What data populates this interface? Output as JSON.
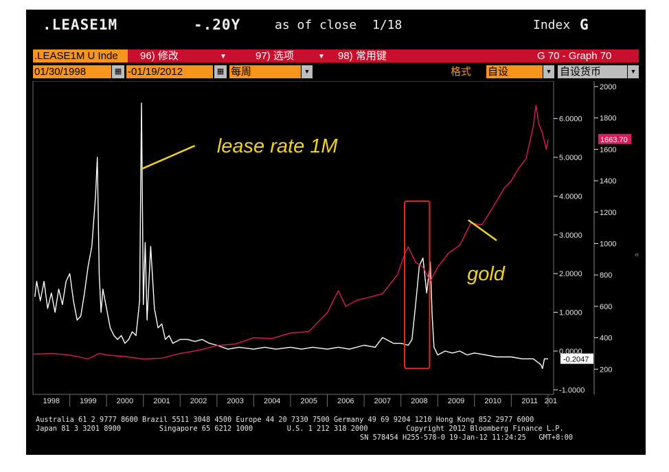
{
  "header": {
    "ticker": ".LEASE1M",
    "spread": "-.20Y",
    "asof": "as of close",
    "date": "1/18",
    "index_label": "Index",
    "g_label": "G"
  },
  "menu": {
    "security_field": ".LEASE1M U Inde",
    "item_96": "96) 修改",
    "item_97": "97) 选项",
    "item_98": "98) 常用键",
    "graph_label": "G 70 - Graph 70"
  },
  "toolbar": {
    "start_date": "01/30/1998",
    "end_date": "01/19/2012",
    "period": "每周",
    "format_label": "格式",
    "format_value": "自设",
    "currency": "自设货币"
  },
  "chart_data": {
    "type": "line",
    "title": "",
    "x_ticks": [
      "1998",
      "1999",
      "2000",
      "2001",
      "2002",
      "2003",
      "2004",
      "2005",
      "2006",
      "2007",
      "2008",
      "2009",
      "2010",
      "2011",
      "201"
    ],
    "ylim_left": [
      -1.0,
      6.8
    ],
    "left_ticks": [
      "-1.0000",
      "0.0000",
      "1.0000",
      "2.0000",
      "3.0000",
      "4.0000",
      "5.0000",
      "6.0000"
    ],
    "left_tick_values": [
      -1,
      0,
      1,
      2,
      3,
      4,
      5,
      6
    ],
    "ylim_right": [
      150,
      2000
    ],
    "right_ticks": [
      "200",
      "400",
      "600",
      "800",
      "1000",
      "1200",
      "1400",
      "1600",
      "1800",
      "2000"
    ],
    "right_tick_values": [
      200,
      400,
      600,
      800,
      1000,
      1200,
      1400,
      1600,
      1800,
      2000
    ],
    "series": [
      {
        "key": "lease",
        "axis": "left",
        "color": "#ffffff",
        "x": [
          1998.05,
          1998.1,
          1998.2,
          1998.3,
          1998.4,
          1998.5,
          1998.6,
          1998.7,
          1998.8,
          1998.9,
          1999.0,
          1999.1,
          1999.2,
          1999.3,
          1999.4,
          1999.5,
          1999.6,
          1999.7,
          1999.75,
          1999.8,
          1999.85,
          1999.9,
          2000.0,
          2000.1,
          2000.2,
          2000.3,
          2000.4,
          2000.5,
          2000.6,
          2000.7,
          2000.8,
          2000.9,
          2000.95,
          2001.0,
          2001.05,
          2001.1,
          2001.2,
          2001.3,
          2001.4,
          2001.5,
          2001.6,
          2001.7,
          2001.8,
          2002.0,
          2002.2,
          2002.4,
          2002.6,
          2002.8,
          2003.0,
          2003.3,
          2003.6,
          2004.0,
          2004.3,
          2004.6,
          2005.0,
          2005.3,
          2005.6,
          2006.0,
          2006.3,
          2006.6,
          2007.0,
          2007.3,
          2007.5,
          2007.8,
          2008.0,
          2008.2,
          2008.3,
          2008.4,
          2008.5,
          2008.6,
          2008.7,
          2008.8,
          2008.85,
          2008.9,
          2009.0,
          2009.2,
          2009.4,
          2009.6,
          2009.8,
          2010.0,
          2010.3,
          2010.6,
          2011.0,
          2011.3,
          2011.6,
          2011.8,
          2011.85,
          2011.9,
          2012.0
        ],
        "y": [
          1.4,
          1.8,
          1.3,
          1.8,
          1.1,
          1.5,
          1.0,
          1.6,
          1.2,
          1.8,
          2.0,
          1.3,
          0.8,
          0.9,
          1.5,
          2.2,
          2.7,
          4.0,
          5.0,
          2.0,
          1.0,
          1.6,
          1.1,
          0.6,
          0.4,
          0.3,
          0.4,
          0.2,
          0.3,
          0.5,
          0.4,
          1.3,
          6.4,
          1.2,
          2.8,
          0.8,
          2.7,
          1.1,
          0.6,
          0.7,
          0.3,
          0.4,
          0.2,
          0.3,
          0.3,
          0.25,
          0.3,
          0.2,
          0.15,
          0.05,
          0.1,
          0.05,
          0.1,
          0.05,
          0.1,
          0.05,
          0.1,
          0.05,
          0.1,
          0.05,
          0.15,
          0.1,
          0.35,
          0.2,
          0.2,
          0.15,
          0.3,
          1.2,
          2.2,
          2.4,
          1.5,
          2.3,
          0.9,
          0.1,
          -0.1,
          0.0,
          -0.05,
          0.0,
          -0.1,
          -0.05,
          -0.1,
          -0.15,
          -0.15,
          -0.2,
          -0.2,
          -0.35,
          -0.45,
          -0.2,
          -0.2
        ]
      },
      {
        "key": "gold",
        "axis": "right",
        "color": "#e0195f",
        "x": [
          1998.0,
          1998.5,
          1999.0,
          1999.5,
          1999.8,
          2000.0,
          2000.5,
          2001.0,
          2001.5,
          2002.0,
          2002.5,
          2003.0,
          2003.5,
          2004.0,
          2004.5,
          2005.0,
          2005.5,
          2006.0,
          2006.3,
          2006.5,
          2006.8,
          2007.0,
          2007.5,
          2007.9,
          2008.1,
          2008.2,
          2008.4,
          2008.6,
          2008.8,
          2009.0,
          2009.3,
          2009.6,
          2009.9,
          2010.2,
          2010.5,
          2010.8,
          2011.0,
          2011.2,
          2011.4,
          2011.6,
          2011.67,
          2011.75,
          2011.85,
          2011.95,
          2012.0
        ],
        "y": [
          295,
          300,
          290,
          265,
          300,
          290,
          280,
          265,
          270,
          300,
          320,
          350,
          360,
          400,
          395,
          430,
          440,
          560,
          700,
          600,
          640,
          650,
          680,
          800,
          930,
          980,
          880,
          850,
          760,
          850,
          940,
          990,
          1130,
          1120,
          1230,
          1350,
          1400,
          1480,
          1540,
          1750,
          1880,
          1760,
          1700,
          1600,
          1663
        ]
      }
    ],
    "annotations": {
      "lease_label": "lease rate 1M",
      "gold_label": "gold",
      "last_lease": "-0.2047",
      "last_gold": "1663.70",
      "highlight_from": 2008.1,
      "highlight_to": 2008.78,
      "label_color": "#f2d21b",
      "highlight_color": "#e8291c"
    }
  },
  "footer": {
    "line1": "Australia 61 2 9777 8600 Brazil 5511 3048 4500 Europe 44 20 7330 7500 Germany 49 69 9204 1210 Hong Kong 852 2977 6000",
    "line2": "Japan 81 3 3201 8900         Singapore 65 6212 1000        U.S. 1 212 318 2000         Copyright 2012 Bloomberg Finance L.P.",
    "line3": "SN 578454 H255-578-0 19-Jan-12 11:24:25   GMT+8:00"
  }
}
